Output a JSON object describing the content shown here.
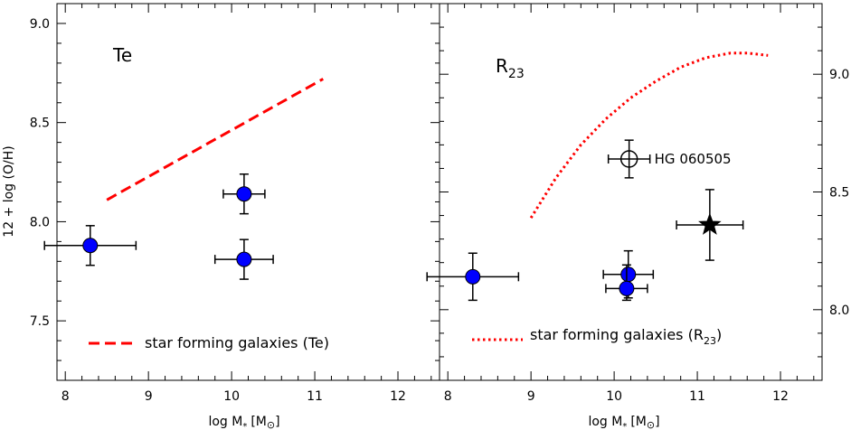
{
  "chart_data": [
    {
      "type": "scatter",
      "panel": "Te",
      "xlabel": "log M",
      "xlabel_subscript": "*",
      "xlabel_unit_prefix": "[M",
      "xlabel_unit_suffix": "]",
      "ylabel": "12 + log (O/H)",
      "xlim": [
        7.9,
        12.5
      ],
      "ylim": [
        7.2,
        9.1
      ],
      "x_ticks": [
        "8",
        "9",
        "10",
        "11",
        "12"
      ],
      "x_tick_values": [
        8,
        9,
        10,
        11,
        12
      ],
      "y_ticks": [
        "7.5",
        "8.0",
        "8.5",
        "9.0"
      ],
      "y_tick_values": [
        7.5,
        8.0,
        8.5,
        9.0
      ],
      "y_axis_side": "left",
      "points": [
        {
          "x": 8.3,
          "y": 7.88,
          "xerr": [
            0.55,
            0.55
          ],
          "yerr": [
            0.1,
            0.1
          ],
          "marker": "filled-circle",
          "color": "#0000ff"
        },
        {
          "x": 10.15,
          "y": 8.14,
          "xerr": [
            0.25,
            0.25
          ],
          "yerr": [
            0.1,
            0.1
          ],
          "marker": "filled-circle",
          "color": "#0000ff"
        },
        {
          "x": 10.15,
          "y": 7.81,
          "xerr": [
            0.35,
            0.35
          ],
          "yerr": [
            0.1,
            0.1
          ],
          "marker": "filled-circle",
          "color": "#0000ff"
        }
      ],
      "relation": {
        "style": "dashed",
        "color": "#ff0000",
        "x": [
          8.5,
          11.1
        ],
        "y": [
          8.11,
          8.72
        ],
        "legend": "star forming galaxies (Te)"
      }
    },
    {
      "type": "scatter",
      "panel": "R",
      "panel_subscript": "23",
      "xlabel": "log M",
      "xlabel_subscript": "*",
      "xlabel_unit_prefix": "[M",
      "xlabel_unit_suffix": "]",
      "xlim": [
        7.9,
        12.5
      ],
      "ylim": [
        7.7,
        9.3
      ],
      "x_ticks": [
        "8",
        "9",
        "10",
        "11",
        "12"
      ],
      "x_tick_values": [
        8,
        9,
        10,
        11,
        12
      ],
      "y_ticks": [
        "8.0",
        "8.5",
        "9.0"
      ],
      "y_tick_values": [
        8.0,
        8.5,
        9.0
      ],
      "y_axis_side": "right",
      "points": [
        {
          "x": 8.3,
          "y": 8.14,
          "xerr": [
            0.55,
            0.55
          ],
          "yerr": [
            0.1,
            0.1
          ],
          "marker": "filled-circle",
          "color": "#0000ff"
        },
        {
          "x": 10.17,
          "y": 8.15,
          "xerr": [
            0.3,
            0.3
          ],
          "yerr": [
            0.1,
            0.1
          ],
          "marker": "filled-circle",
          "color": "#0000ff"
        },
        {
          "x": 10.15,
          "y": 8.09,
          "xerr": [
            0.25,
            0.25
          ],
          "yerr": [
            0.05,
            0.1
          ],
          "marker": "filled-circle",
          "color": "#0000ff"
        },
        {
          "x": 10.18,
          "y": 8.64,
          "xerr": [
            0.25,
            0.25
          ],
          "yerr": [
            0.08,
            0.08
          ],
          "marker": "open-circle",
          "color": "#000000",
          "label": "HG 060505"
        },
        {
          "x": 11.15,
          "y": 8.36,
          "xerr": [
            0.4,
            0.4
          ],
          "yerr": [
            0.15,
            0.15
          ],
          "marker": "star",
          "color": "#000000"
        }
      ],
      "relation": {
        "style": "dotted",
        "color": "#ff0000",
        "x": [
          9.0,
          9.3,
          9.6,
          9.9,
          10.2,
          10.5,
          10.8,
          11.1,
          11.4,
          11.6,
          11.85
        ],
        "y": [
          8.39,
          8.56,
          8.7,
          8.81,
          8.9,
          8.97,
          9.03,
          9.07,
          9.09,
          9.09,
          9.08
        ],
        "legend": "star forming galaxies (R",
        "legend_subscript": "23",
        "legend_suffix": ")"
      }
    }
  ]
}
